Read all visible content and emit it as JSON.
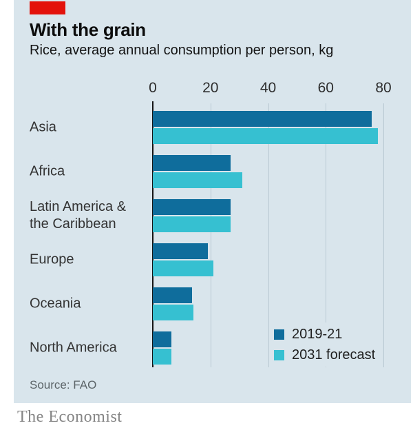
{
  "header": {
    "title": "With the grain",
    "subtitle": "Rice, average annual consumption per person, kg"
  },
  "source": "Source: FAO",
  "footer": "The Economist",
  "colors": {
    "panel_background": "#d9e5ec",
    "brand_red": "#e3120b",
    "series_2019_21": "#0f6d9c",
    "series_2031_forecast": "#36c0d1",
    "gridline": "#b9c9d2",
    "axis_line": "#141414"
  },
  "chart_data": {
    "type": "bar",
    "orientation": "horizontal",
    "title": "With the grain",
    "subtitle": "Rice, average annual consumption per person, kg",
    "categories": [
      "Asia",
      "Africa",
      "Latin America &\nthe Caribbean",
      "Europe",
      "Oceania",
      "North America"
    ],
    "series": [
      {
        "name": "2019-21",
        "color": "#0f6d9c",
        "values": [
          76,
          27,
          27,
          19,
          13.5,
          6.5
        ]
      },
      {
        "name": "2031 forecast",
        "color": "#36c0d1",
        "values": [
          78,
          31,
          27,
          21,
          14,
          6.5
        ]
      }
    ],
    "xlabel": "",
    "ylabel": "",
    "xlim": [
      0,
      80
    ],
    "xticks": [
      0,
      20,
      40,
      60,
      80
    ],
    "grid": true,
    "legend_position": "inside-bottom-right"
  }
}
